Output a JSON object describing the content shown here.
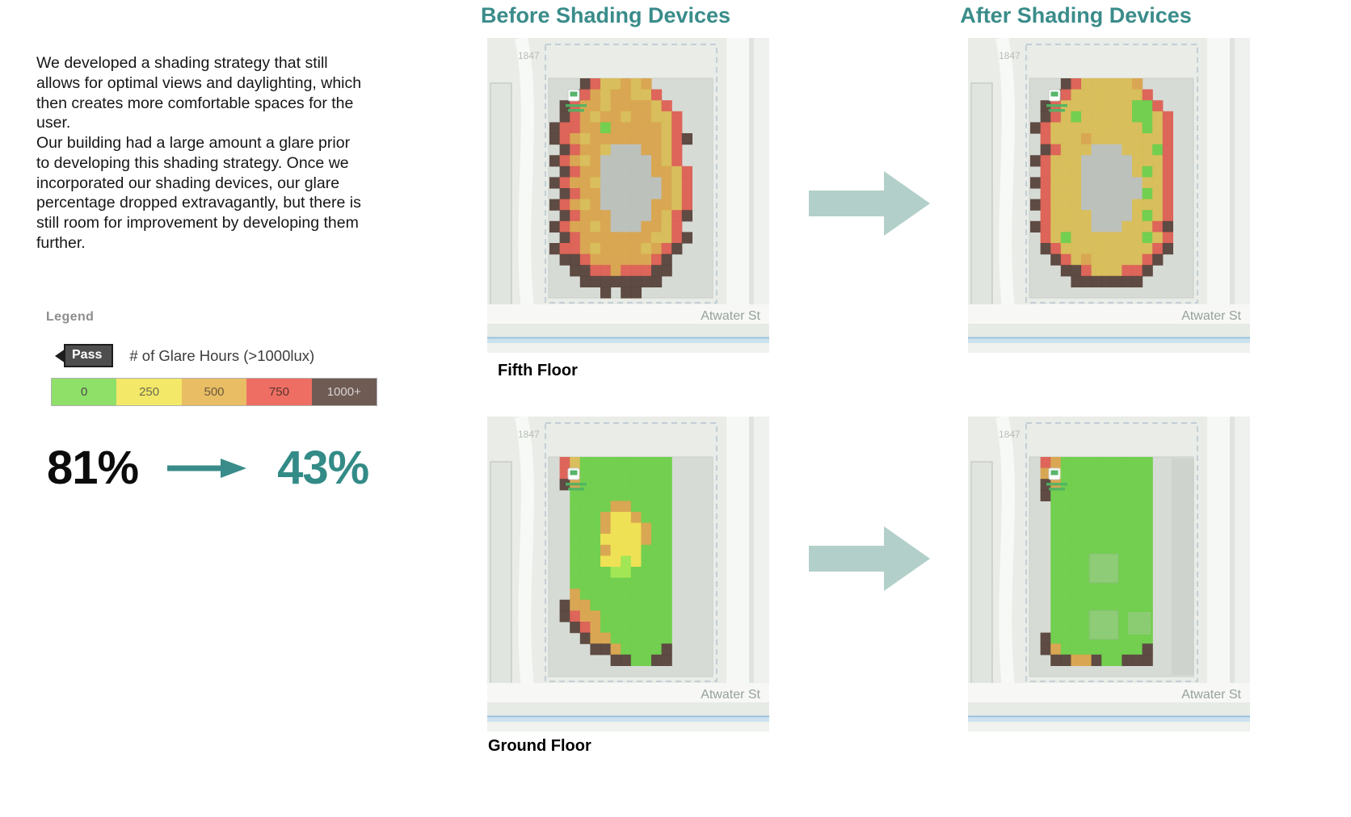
{
  "intro": {
    "p1": "We developed a shading strategy that still allows for optimal views and daylighting, which then creates more comfortable spaces for the user.",
    "p2": "Our building had a large amount a glare prior to developing this shading strategy. Once we incorporated our shading devices, our glare percentage dropped extravagantly, but there is still room for improvement by developing them further."
  },
  "legend": {
    "title": "Legend",
    "pass_label": "Pass",
    "scale_title": "# of Glare Hours (>1000lux)",
    "scale": [
      {
        "label": "0",
        "color": "#8fe069",
        "text_color": "#4a4a4a"
      },
      {
        "label": "250",
        "color": "#f3e867",
        "text_color": "#6b6b52"
      },
      {
        "label": "500",
        "color": "#e9bd63",
        "text_color": "#6b5a3f"
      },
      {
        "label": "750",
        "color": "#ee6e63",
        "text_color": "#5c3330"
      },
      {
        "label": "1000+",
        "color": "#6f5b54",
        "text_color": "#d9d5d3"
      }
    ]
  },
  "stats": {
    "before": "81%",
    "after": "43%"
  },
  "headings": {
    "before": "Before Shading Devices",
    "after": "After Shading Devices"
  },
  "floors": {
    "fifth": "Fifth Floor",
    "ground": "Ground Floor"
  },
  "map_labels": {
    "street": "Atwater St",
    "parcel": "1847"
  },
  "colors": {
    "accent_teal": "#3a8c8a",
    "stat_teal": "#338b87",
    "arrow_sage": "#b3cfc9"
  },
  "heatmaps": {
    "palette": {
      "G": "#6ecf49",
      "L": "#a0e74e",
      "Y": "#d8bd55",
      "y": "#f0e14f",
      "O": "#d9a44c",
      "R": "#dd5f53",
      "D": "#57433c",
      "X": "#bcc0bb"
    },
    "panels": [
      {
        "id": "before_fifth",
        "name": "heatmap-before-fifth",
        "ghost": false
      },
      {
        "id": "after_fifth",
        "name": "heatmap-after-fifth",
        "ghost": false
      },
      {
        "id": "before_ground",
        "name": "heatmap-before-ground",
        "ghost": false
      },
      {
        "id": "after_ground",
        "name": "heatmap-after-ground",
        "ghost": true
      }
    ],
    "grids": {
      "before_fifth": [
        "...DRYYOYO......",
        "..DROYOOYYR.....",
        ".DROOYOOOOYR....",
        ".DROYOOYOOYYR...",
        "DRROOGOOOOOYR...",
        "DROYOOOOOOOYRD..",
        ".DROOYXXXOOYR...",
        "DROYOXXXXXOYR...",
        ".DROOXXXXXOOYR..",
        "DROOYXXXXXXOYR..",
        ".DROOXXXXXXOYR..",
        "DROYOXXXXXOOYR..",
        ".DROOOXXXXOYRD..",
        "DROOYOXXXOOYR...",
        ".DROOOOOOOYYRD..",
        "DRROYOOOOYORD...",
        ".DDROOOOOORD....",
        "..DDRRORRRDD....",
        "...DDDDDDDD.....",
        ".....D.DD......."
      ],
      "after_fifth": [
        "...DRYYYYYO.....",
        "..DRYYYYYYYR....",
        ".DRYYYYYYYGGR...",
        ".DRYGYYYYYGGYR..",
        "DRYYYYYYYYYGYR..",
        ".RYYYOYYYYYYYR..",
        ".DRYYYXXXYYYGR..",
        "DRYYYXXXXXYYYR..",
        ".RYYYXXXXXYGYR..",
        "DRYYYXXXXXXYYR..",
        ".RYYYXXXXXXGYR..",
        "DRYYYXXXXXYYYR..",
        ".RYYYYXXXXYGYR..",
        "DRYYYYXXXYYYRD..",
        ".RYGYYYYYYYGYR..",
        ".DRYYYYYYYYYRD..",
        "..DRYOYYYYYRD...",
        "...DDRYYYRRD....",
        "....DDDDDDD.....",
        "................"
      ],
      "before_ground": [
        ".RYGGGGGGGGG....",
        ".ROGGGGGGGGG....",
        ".DOGGGGGGGGG....",
        "..GGGGGGGGGG....",
        "..GGGGOOGGGG....",
        "..GGGOyyOGGG....",
        "..GGGOyyyOGG....",
        "..GGGyyyyOGG....",
        "..GGGOyyyGGG....",
        "..GGGyyLyGGG....",
        "..GGGGLLGGGG....",
        "..GGGGGGGGGG....",
        "..OGGGGGGGGG....",
        ".DOOGGGGGGGG....",
        ".DROOGGGGGGG....",
        "..DROGGGGGGG....",
        "...DOOGGGGGG....",
        "....DDOGGGGD....",
        "......DDGGDD....",
        "................"
      ],
      "after_ground": [
        ".ROGGGGGGGGG....",
        ".OyGGGGGGGGG....",
        ".DOGGGGGGGGG....",
        ".DGGGGGGGGGG....",
        "..GGGGGGGGGG....",
        "..GGGGGGGGGG....",
        "..GGGGGGGGGG....",
        "..GGGGGGGGGG....",
        "..GGGGGGGGGG....",
        "..GGGGGGGGGG....",
        "..GGGGGGGGGG....",
        "..GGGGGGGGGG....",
        "..GGGGGGGGGG....",
        "..GGGGGGGGGG....",
        "..GGGGGGGGGG....",
        "..GGGGGGGGGG....",
        ".DGGGGGGGGGG....",
        ".DOGGGGGGGGD....",
        "..DDOODGGDDD....",
        "................"
      ]
    }
  }
}
